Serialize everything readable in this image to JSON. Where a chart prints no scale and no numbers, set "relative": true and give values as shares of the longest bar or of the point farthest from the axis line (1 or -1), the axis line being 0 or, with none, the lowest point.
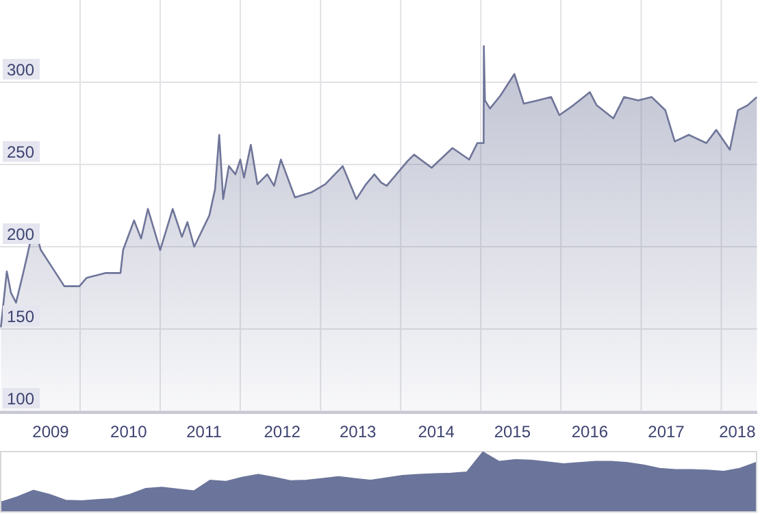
{
  "chart_data": [
    {
      "type": "area",
      "color": "#6f7599",
      "xlim": [
        "2009-01-01",
        "2018-06-14"
      ],
      "ylim": [
        100,
        350
      ],
      "yticks": [
        100,
        150,
        200,
        250,
        300
      ],
      "grid": true,
      "xticks": [
        {
          "value": "2010-01-01",
          "label": null
        },
        {
          "value": "2011-01-01",
          "label": null
        },
        {
          "value": "2012-01-01",
          "label": null
        },
        {
          "value": "2013-01-01",
          "label": null
        },
        {
          "value": "2014-01-01",
          "label": null
        },
        {
          "value": "2015-01-01",
          "label": null
        },
        {
          "value": "2016-01-01",
          "label": null
        },
        {
          "value": "2017-01-01",
          "label": null
        },
        {
          "value": "2018-01-01",
          "label": null
        },
        {
          "value": "2009-08-20",
          "label": "2009"
        },
        {
          "value": "2010-08-10",
          "label": "2010"
        },
        {
          "value": "2011-07-20",
          "label": "2011"
        },
        {
          "value": "2012-07-10",
          "label": "2012"
        },
        {
          "value": "2013-06-20",
          "label": "2013"
        },
        {
          "value": "2014-06-12",
          "label": "2014"
        },
        {
          "value": "2015-05-25",
          "label": "2015"
        },
        {
          "value": "2016-05-12",
          "label": "2016"
        },
        {
          "value": "2017-04-25",
          "label": "2017"
        },
        {
          "value": "2018-03-15",
          "label": "2018"
        }
      ],
      "x": [
        "2009-01-05",
        "2009-02-01",
        "2009-02-20",
        "2009-03-15",
        "2009-04-15",
        "2009-05-04",
        "2009-06-05",
        "2009-07-06",
        "2009-08-19",
        "2009-10-21",
        "2009-12-29",
        "2010-01-30",
        "2010-04-25",
        "2010-07-04",
        "2010-07-16",
        "2010-09-04",
        "2010-10-06",
        "2010-11-06",
        "2011-01-01",
        "2011-02-27",
        "2011-04-10",
        "2011-05-05",
        "2011-06-05",
        "2011-08-13",
        "2011-09-08",
        "2011-09-27",
        "2011-10-15",
        "2011-11-10",
        "2011-12-10",
        "2012-01-01",
        "2012-01-18",
        "2012-02-18",
        "2012-03-19",
        "2012-05-03",
        "2012-06-03",
        "2012-07-04",
        "2012-09-06",
        "2012-11-19",
        "2013-01-22",
        "2013-04-12",
        "2013-06-13",
        "2013-07-27",
        "2013-09-03",
        "2013-10-04",
        "2013-10-29",
        "2014-02-01",
        "2014-03-03",
        "2014-05-22",
        "2014-08-25",
        "2014-11-09",
        "2014-12-16",
        "2015-01-14",
        "2015-01-15",
        "2015-01-20",
        "2015-02-12",
        "2015-04-01",
        "2015-06-03",
        "2015-07-16",
        "2015-09-17",
        "2015-11-18",
        "2015-12-25",
        "2016-02-27",
        "2016-05-12",
        "2016-06-12",
        "2016-08-27",
        "2016-10-15",
        "2016-12-18",
        "2017-02-18",
        "2017-04-21",
        "2017-06-03",
        "2017-08-06",
        "2017-10-25",
        "2017-12-09",
        "2018-02-09",
        "2018-03-18",
        "2018-05-01",
        "2018-06-12"
      ],
      "values": [
        151,
        185,
        172,
        166,
        183,
        194,
        213,
        198,
        189,
        176,
        176,
        181,
        184,
        184,
        198,
        216,
        205,
        223,
        198,
        223,
        206,
        215,
        200,
        219,
        235,
        268,
        229,
        249,
        244,
        253,
        242,
        262,
        238,
        244,
        237,
        253,
        230,
        233,
        238,
        249,
        229,
        238,
        244,
        239,
        237,
        252,
        256,
        248,
        260,
        253,
        263,
        263,
        322,
        289,
        284,
        292,
        305,
        287,
        289,
        291,
        280,
        286,
        294,
        286,
        278,
        291,
        289,
        291,
        283,
        264,
        268,
        263,
        271,
        259,
        283,
        286,
        291
      ]
    },
    {
      "type": "area",
      "relative": true,
      "color": "#6b759b",
      "categories": [
        null,
        null,
        null,
        null,
        null,
        null,
        null,
        null,
        null,
        null,
        null,
        null,
        null,
        null,
        null,
        null,
        null,
        null,
        null,
        null,
        null,
        null,
        null,
        null,
        null,
        null,
        null,
        null,
        null,
        null,
        null,
        null,
        null,
        null,
        null,
        null,
        null,
        null,
        null,
        null,
        null,
        null,
        null,
        null,
        null,
        null,
        null,
        null
      ],
      "values": [
        0.15,
        0.24,
        0.35,
        0.28,
        0.18,
        0.17,
        0.19,
        0.21,
        0.28,
        0.38,
        0.4,
        0.37,
        0.34,
        0.52,
        0.5,
        0.57,
        0.62,
        0.57,
        0.51,
        0.52,
        0.55,
        0.58,
        0.55,
        0.52,
        0.56,
        0.6,
        0.62,
        0.63,
        0.64,
        0.66,
        1,
        0.84,
        0.87,
        0.86,
        0.83,
        0.8,
        0.82,
        0.84,
        0.84,
        0.82,
        0.78,
        0.72,
        0.7,
        0.7,
        0.69,
        0.67,
        0.72,
        0.82
      ]
    }
  ]
}
